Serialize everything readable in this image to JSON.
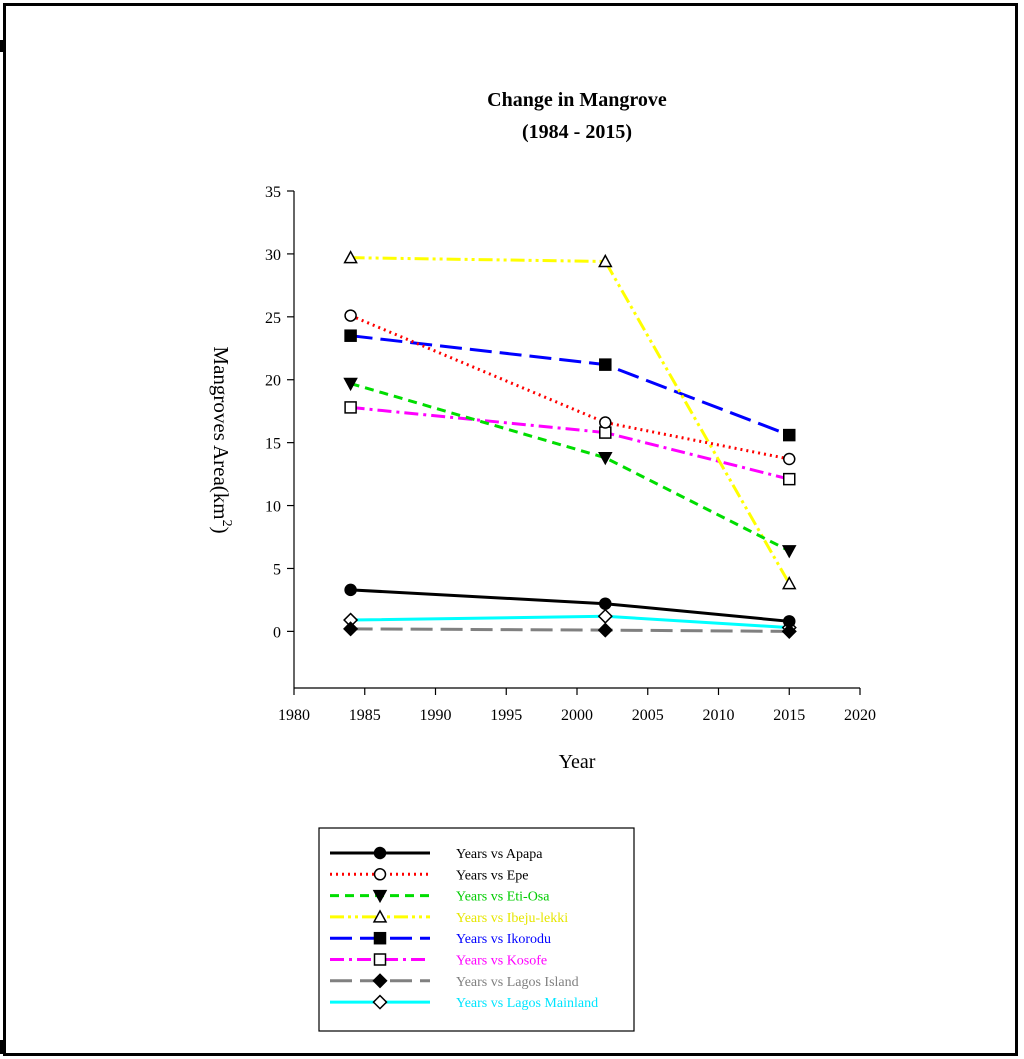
{
  "chart_data": {
    "type": "line",
    "title": "Change in Mangrove",
    "subtitle": "(1984 - 2015)",
    "xlabel": "Year",
    "ylabel": "Mangroves Area(km",
    "ylabel_sup": "2",
    "ylabel_close": ")",
    "xlim": [
      1980,
      2020
    ],
    "ylim": [
      -4.5,
      35
    ],
    "x_ticks": [
      1980,
      1985,
      1990,
      1995,
      2000,
      2005,
      2010,
      2015,
      2020
    ],
    "y_ticks": [
      0,
      5,
      10,
      15,
      20,
      25,
      30,
      35
    ],
    "x": [
      1984,
      2002,
      2015
    ],
    "grid": false,
    "legend_position": "bottom",
    "series": [
      {
        "name": "Years vs Apapa",
        "values": [
          3.3,
          2.2,
          0.8
        ],
        "color": "#000000",
        "marker": "circle-filled",
        "dash": "solid"
      },
      {
        "name": "Years vs Epe",
        "values": [
          25.1,
          16.6,
          13.7
        ],
        "color": "#ff0000",
        "marker": "circle-open",
        "dash": "dotted"
      },
      {
        "name": "Years vs Eti-Osa",
        "values": [
          19.7,
          13.8,
          6.4
        ],
        "color": "#00dd00",
        "marker": "triangle-down-filled",
        "dash": "dashed"
      },
      {
        "name": "Years vs Ibeju-lekki",
        "values": [
          29.7,
          29.4,
          3.8
        ],
        "color": "#ffff00",
        "marker": "triangle-up-open",
        "dash": "dash-dot-dot"
      },
      {
        "name": "Years vs Ikorodu",
        "values": [
          23.5,
          21.2,
          15.6
        ],
        "color": "#0000ff",
        "marker": "square-filled",
        "dash": "long-dash"
      },
      {
        "name": "Years vs Kosofe",
        "values": [
          17.8,
          15.8,
          12.1
        ],
        "color": "#ff00ff",
        "marker": "square-open",
        "dash": "dash-dot"
      },
      {
        "name": "Years vs Lagos Island",
        "values": [
          0.2,
          0.1,
          0.0
        ],
        "color": "#808080",
        "marker": "diamond-filled",
        "dash": "long-dash"
      },
      {
        "name": "Years vs Lagos Mainland",
        "values": [
          0.9,
          1.2,
          0.3
        ],
        "color": "#00ffff",
        "marker": "diamond-open",
        "dash": "solid"
      }
    ]
  }
}
